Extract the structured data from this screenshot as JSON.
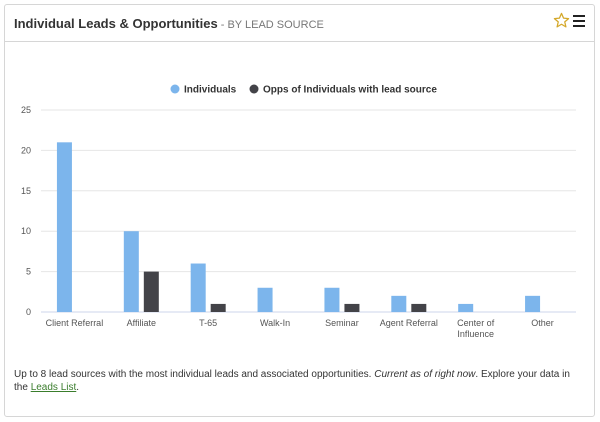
{
  "header": {
    "title": "Individual Leads & Opportunities",
    "subtitle": " - BY LEAD SOURCE"
  },
  "chart_data": {
    "type": "bar",
    "categories": [
      "Client Referral",
      "Affiliate",
      "T-65",
      "Walk-In",
      "Seminar",
      "Agent Referral",
      "Center of Influence",
      "Other"
    ],
    "series": [
      {
        "name": "Individuals",
        "color": "#7cb5ec",
        "values": [
          21,
          10,
          6,
          3,
          3,
          2,
          1,
          2
        ]
      },
      {
        "name": "Opps of Individuals with lead source",
        "color": "#434348",
        "values": [
          0,
          5,
          1,
          0,
          1,
          1,
          0,
          0
        ]
      }
    ],
    "yticks": [
      "0",
      "5",
      "10",
      "15",
      "20",
      "25"
    ],
    "ylim": [
      0,
      25
    ],
    "grid": true,
    "legend": "top-center"
  },
  "footer": {
    "text1": "Up to 8 lead sources with the most individual leads and associated opportunities. ",
    "text2": "Current as of right now",
    "text3": ". Explore your data in the ",
    "link": "Leads List",
    "text4": "."
  },
  "icons": {
    "star": "star-icon",
    "menu": "menu-icon"
  }
}
